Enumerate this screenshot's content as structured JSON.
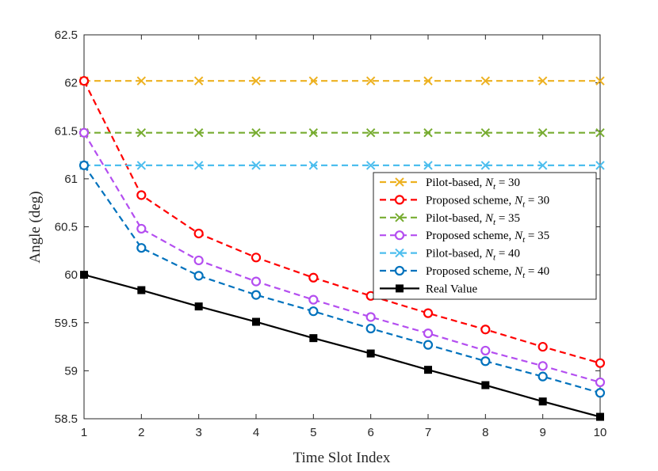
{
  "chart_data": {
    "type": "line",
    "xlabel": "Time Slot Index",
    "ylabel": "Angle (deg)",
    "xlim": [
      1,
      10
    ],
    "ylim": [
      58.5,
      62.5
    ],
    "x": [
      1,
      2,
      3,
      4,
      5,
      6,
      7,
      8,
      9,
      10
    ],
    "xticks": [
      "1",
      "2",
      "3",
      "4",
      "5",
      "6",
      "7",
      "8",
      "9",
      "10"
    ],
    "yticks": [
      "58.5",
      "59",
      "59.5",
      "60",
      "60.5",
      "61",
      "61.5",
      "62",
      "62.5"
    ],
    "grid": false,
    "legend_position": "center-right",
    "series": [
      {
        "name": "Pilot-based, N_t = 30",
        "legend_parts": [
          "Pilot-based, ",
          "N",
          "t",
          " = 30"
        ],
        "color": "#EDB120",
        "linestyle": "dashed",
        "marker": "x",
        "values": [
          62.02,
          62.02,
          62.02,
          62.02,
          62.02,
          62.02,
          62.02,
          62.02,
          62.02,
          62.02
        ]
      },
      {
        "name": "Proposed scheme, N_t = 30",
        "legend_parts": [
          "Proposed scheme, ",
          "N",
          "t",
          " = 30"
        ],
        "color": "#FF0000",
        "linestyle": "dashed",
        "marker": "o",
        "values": [
          62.02,
          60.83,
          60.43,
          60.18,
          59.97,
          59.78,
          59.6,
          59.43,
          59.25,
          59.08
        ]
      },
      {
        "name": "Pilot-based, N_t = 35",
        "legend_parts": [
          "Pilot-based, ",
          "N",
          "t",
          " = 35"
        ],
        "color": "#77AC30",
        "linestyle": "dashed",
        "marker": "x",
        "values": [
          61.48,
          61.48,
          61.48,
          61.48,
          61.48,
          61.48,
          61.48,
          61.48,
          61.48,
          61.48
        ]
      },
      {
        "name": "Proposed scheme, N_t = 35",
        "legend_parts": [
          "Proposed scheme, ",
          "N",
          "t",
          " = 35"
        ],
        "color": "#B44EF0",
        "linestyle": "dashed",
        "marker": "o",
        "values": [
          61.48,
          60.48,
          60.15,
          59.93,
          59.74,
          59.56,
          59.39,
          59.21,
          59.05,
          58.88
        ]
      },
      {
        "name": "Pilot-based, N_t = 40",
        "legend_parts": [
          "Pilot-based, ",
          "N",
          "t",
          " = 40"
        ],
        "color": "#4DBEEE",
        "linestyle": "dashed",
        "marker": "x",
        "values": [
          61.14,
          61.14,
          61.14,
          61.14,
          61.14,
          61.14,
          61.14,
          61.14,
          61.14,
          61.14
        ]
      },
      {
        "name": "Proposed scheme, N_t = 40",
        "legend_parts": [
          "Proposed scheme, ",
          "N",
          "t",
          " = 40"
        ],
        "color": "#0072BD",
        "linestyle": "dashed",
        "marker": "o",
        "values": [
          61.14,
          60.28,
          59.99,
          59.79,
          59.62,
          59.44,
          59.27,
          59.1,
          58.94,
          58.77
        ]
      },
      {
        "name": "Real Value",
        "legend_parts": [
          "Real Value",
          "",
          "",
          ""
        ],
        "color": "#000000",
        "linestyle": "solid",
        "marker": "s",
        "values": [
          60.0,
          59.84,
          59.67,
          59.51,
          59.34,
          59.18,
          59.01,
          58.85,
          58.68,
          58.52
        ]
      }
    ]
  }
}
